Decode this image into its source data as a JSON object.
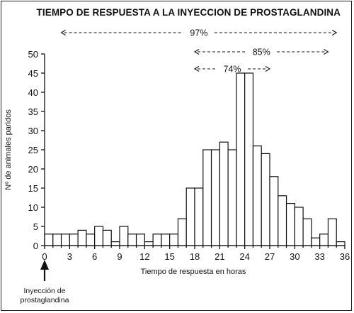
{
  "chart_data": {
    "type": "bar",
    "title": "TIEMPO DE RESPUESTA A LA INYECCION DE PROSTAGLANDINA",
    "xlabel": "Tiempo de respuesta en horas",
    "ylabel": "Nº de animales paridos",
    "xlim": [
      0,
      36
    ],
    "ylim": [
      0,
      50
    ],
    "xticks": [
      0,
      3,
      6,
      9,
      12,
      15,
      18,
      21,
      24,
      27,
      30,
      33,
      36
    ],
    "yticks": [
      0,
      5,
      10,
      15,
      20,
      25,
      30,
      35,
      40,
      45,
      50
    ],
    "x": [
      0,
      1,
      2,
      3,
      4,
      5,
      6,
      7,
      8,
      9,
      10,
      11,
      12,
      13,
      14,
      15,
      16,
      17,
      18,
      19,
      20,
      21,
      22,
      23,
      24,
      25,
      26,
      27,
      28,
      29,
      30,
      31,
      32,
      33,
      34,
      35
    ],
    "values": [
      3,
      3,
      3,
      3,
      4,
      3,
      5,
      4,
      1,
      5,
      3,
      3,
      1,
      3,
      3,
      3,
      7,
      15,
      15,
      25,
      25,
      27,
      25,
      45,
      45,
      26,
      24,
      18,
      13,
      11,
      10,
      7,
      2,
      3,
      7,
      1
    ],
    "ranges": [
      {
        "label": "97%",
        "from": 2,
        "to": 35
      },
      {
        "label": "85%",
        "from": 18,
        "to": 34
      },
      {
        "label": "74%",
        "from": 18,
        "to": 27
      }
    ],
    "annotation": "Inyección de\nprostaglandina",
    "grid": false,
    "legend": "none"
  }
}
